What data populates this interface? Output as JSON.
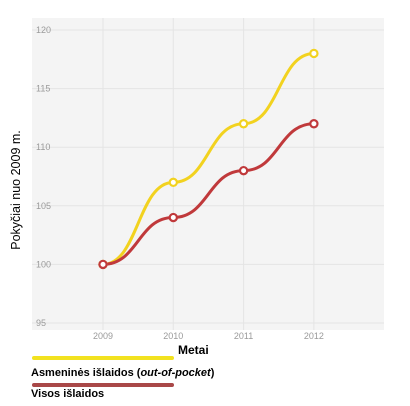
{
  "chart_data": {
    "type": "line",
    "x": [
      "2009",
      "2010",
      "2011",
      "2012"
    ],
    "series": [
      {
        "name": "Asmeninės išlaidos (out-of-pocket)",
        "values": [
          100,
          107,
          112,
          118
        ],
        "color": "#f2d21f"
      },
      {
        "name": "Visos išlaidos",
        "values": [
          100,
          104,
          108,
          112
        ],
        "color": "#c0393b"
      }
    ],
    "xlabel": "Metai",
    "ylabel": "Pokyčiai nuo 2009  m.",
    "ylim": [
      95,
      120
    ],
    "yticks": [
      95,
      100,
      105,
      110,
      115,
      120
    ],
    "grid": true,
    "legend_position": "bottom-left"
  },
  "legend": {
    "item1_prefix": "Asmeninės išlaidos (",
    "item1_italic": "out-of-pocket",
    "item1_suffix": ")",
    "item2": "Visos išlaidos"
  }
}
